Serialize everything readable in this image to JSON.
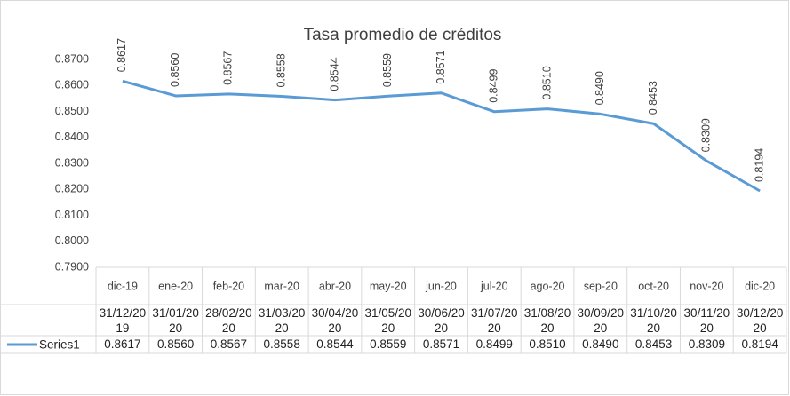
{
  "chart_data": {
    "type": "line",
    "title": "Tasa promedio de créditos",
    "categories": [
      "dic-19",
      "ene-20",
      "feb-20",
      "mar-20",
      "abr-20",
      "may-20",
      "jun-20",
      "jul-20",
      "ago-20",
      "sep-20",
      "oct-20",
      "nov-20",
      "dic-20"
    ],
    "table_headers": [
      "31/12/2019",
      "31/01/2020",
      "28/02/2020",
      "31/03/2020",
      "30/04/2020",
      "31/05/2020",
      "30/06/2020",
      "31/07/2020",
      "31/08/2020",
      "30/09/2020",
      "31/10/2020",
      "30/11/2020",
      "30/12/2020"
    ],
    "series": [
      {
        "name": "Series1",
        "color": "#5b9bd5",
        "values": [
          0.8617,
          0.856,
          0.8567,
          0.8558,
          0.8544,
          0.8559,
          0.8571,
          0.8499,
          0.851,
          0.849,
          0.8453,
          0.8309,
          0.8194
        ],
        "value_labels": [
          "0.8617",
          "0.8560",
          "0.8567",
          "0.8558",
          "0.8544",
          "0.8559",
          "0.8571",
          "0.8499",
          "0.8510",
          "0.8490",
          "0.8453",
          "0.8309",
          "0.8194"
        ]
      }
    ],
    "ylim": [
      0.79,
      0.87
    ],
    "yticks": [
      {
        "value": 0.79,
        "label": "0.7900"
      },
      {
        "value": 0.8,
        "label": "0.8000"
      },
      {
        "value": 0.81,
        "label": "0.8100"
      },
      {
        "value": 0.82,
        "label": "0.8200"
      },
      {
        "value": 0.83,
        "label": "0.8300"
      },
      {
        "value": 0.84,
        "label": "0.8400"
      },
      {
        "value": 0.85,
        "label": "0.8500"
      },
      {
        "value": 0.86,
        "label": "0.8600"
      },
      {
        "value": 0.87,
        "label": "0.8700"
      }
    ],
    "grid": false
  }
}
